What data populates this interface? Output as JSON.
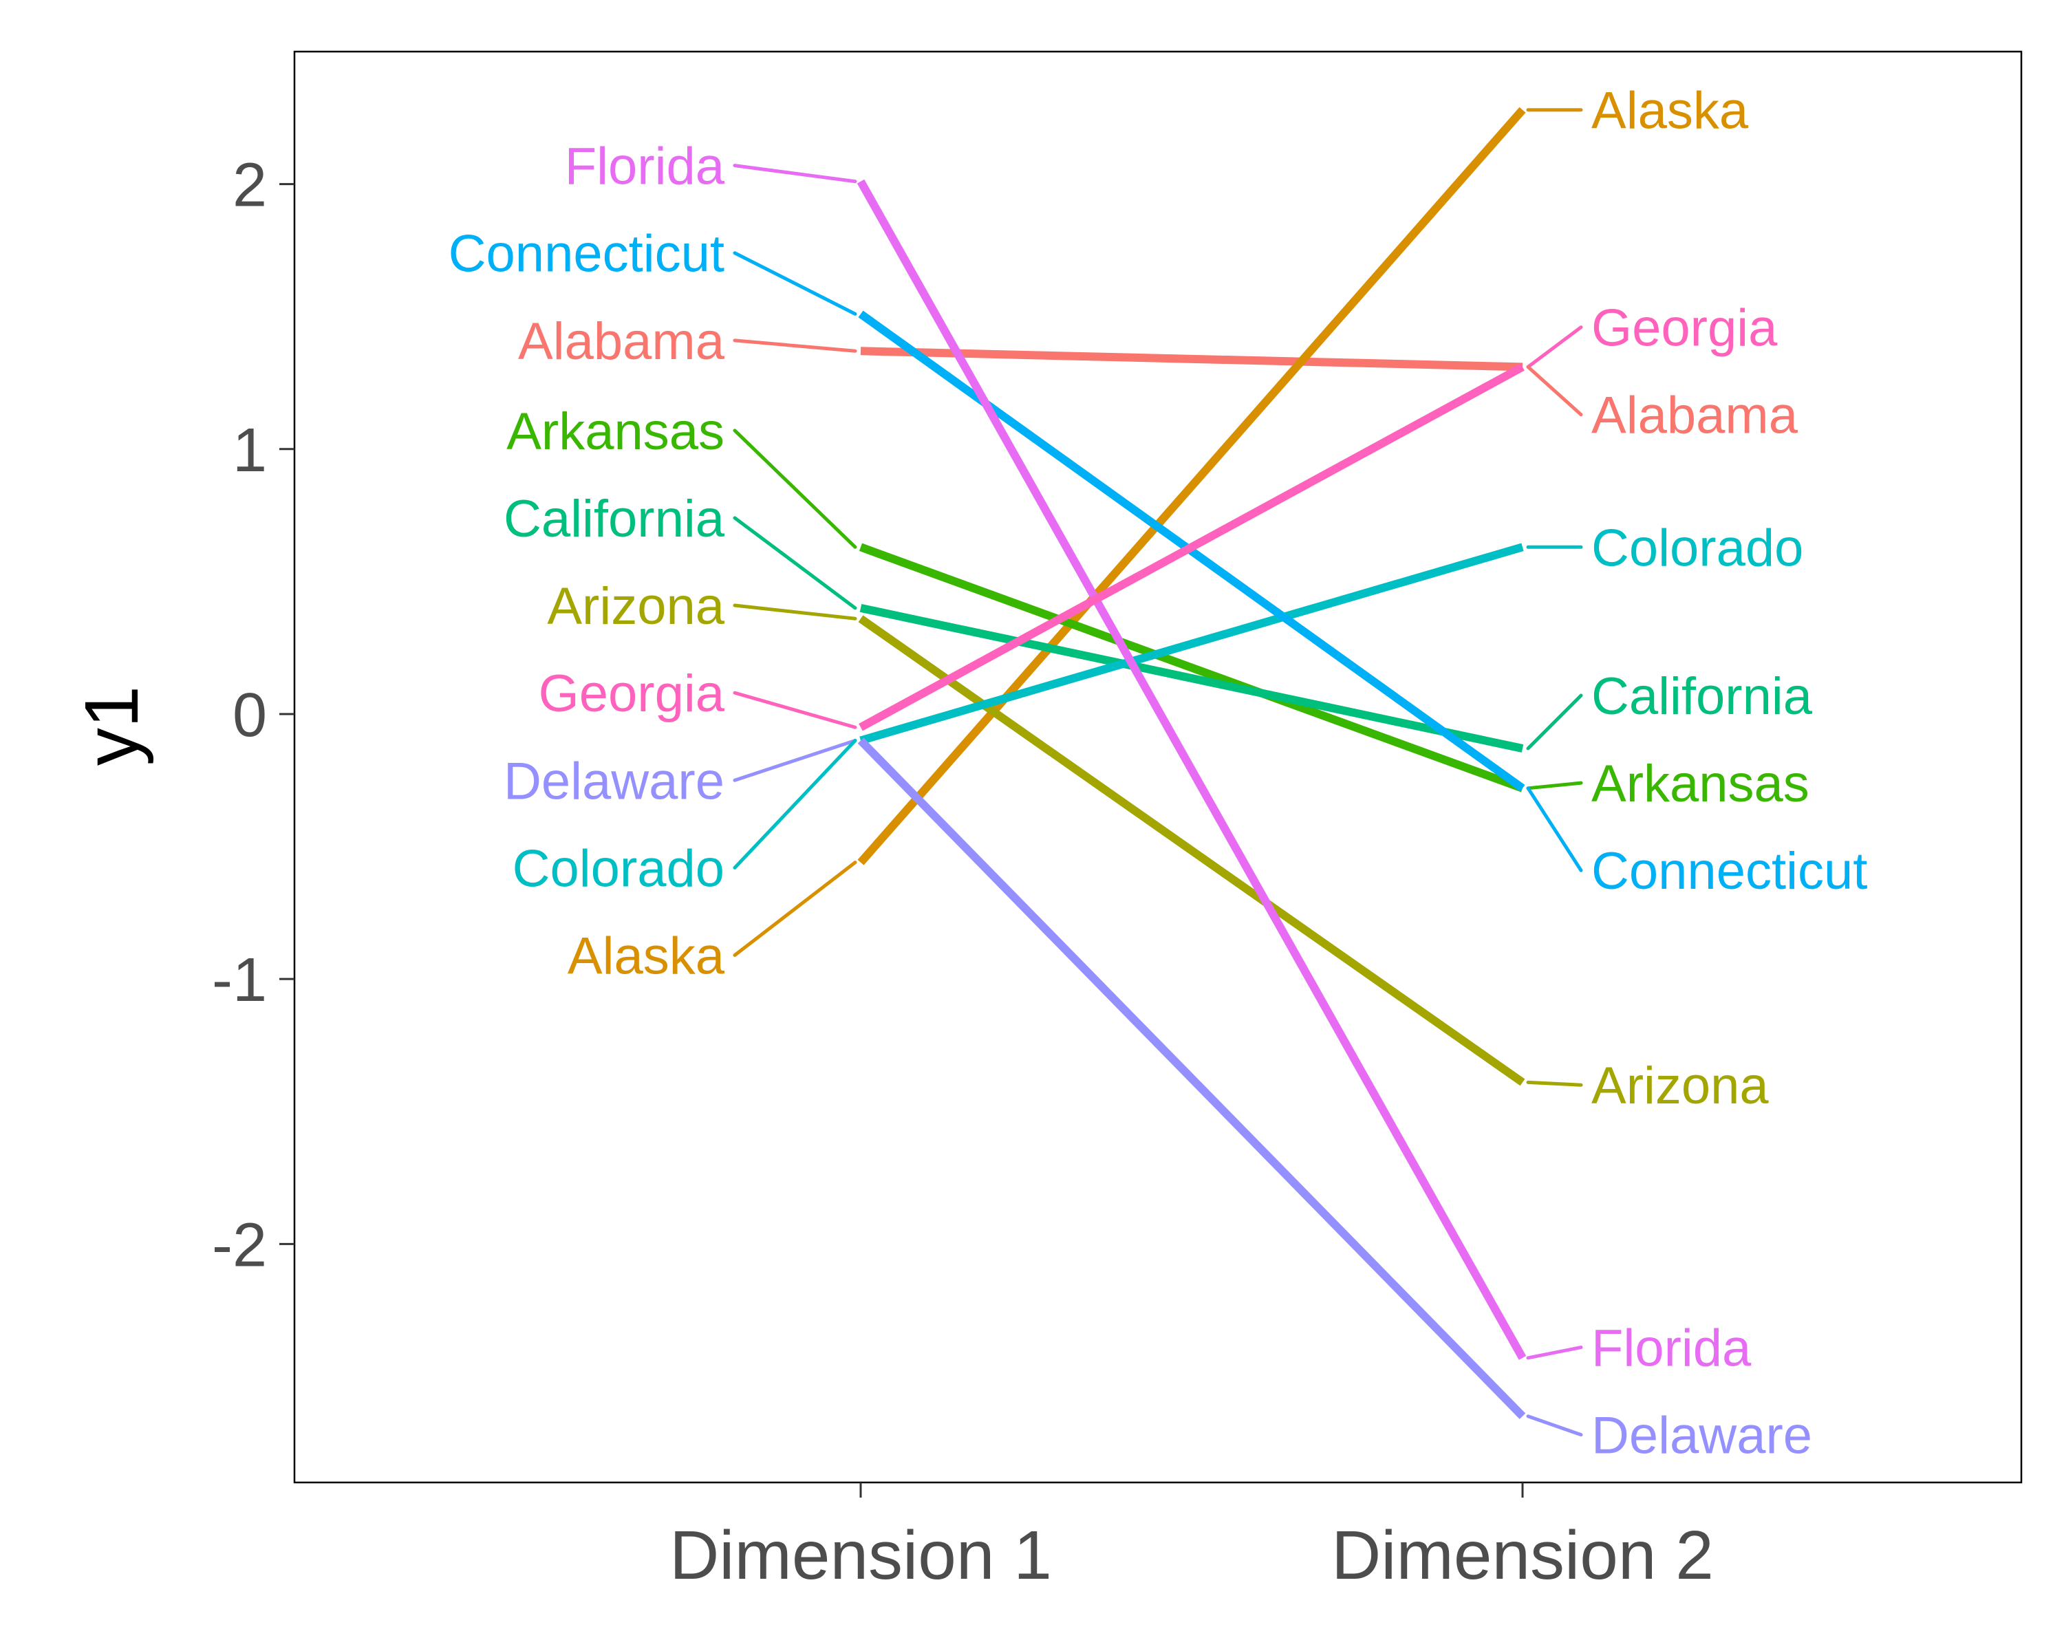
{
  "chart_data": {
    "type": "line",
    "title": "",
    "xlabel": "",
    "ylabel": "y1",
    "categories": [
      "Dimension 1",
      "Dimension 2"
    ],
    "ylim": [
      -2.9,
      2.5
    ],
    "yticks": [
      "2",
      "1",
      "0",
      "-1",
      "-2"
    ],
    "grid": false,
    "legend": "none",
    "series": [
      {
        "name": "Alabama",
        "color": "#F8766D",
        "values": [
          1.37,
          1.31
        ]
      },
      {
        "name": "Alaska",
        "color": "#D89000",
        "values": [
          -0.56,
          2.28
        ]
      },
      {
        "name": "Arizona",
        "color": "#A3A500",
        "values": [
          0.36,
          -1.39
        ]
      },
      {
        "name": "Arkansas",
        "color": "#39B600",
        "values": [
          0.63,
          -0.28
        ]
      },
      {
        "name": "California",
        "color": "#00BF7D",
        "values": [
          0.4,
          -0.13
        ]
      },
      {
        "name": "Colorado",
        "color": "#00BFC4",
        "values": [
          -0.1,
          0.63
        ]
      },
      {
        "name": "Connecticut",
        "color": "#00B0F6",
        "values": [
          1.51,
          -0.28
        ]
      },
      {
        "name": "Delaware",
        "color": "#9590FF",
        "values": [
          -0.1,
          -2.65
        ]
      },
      {
        "name": "Florida",
        "color": "#E76BF3",
        "values": [
          2.01,
          -2.43
        ]
      },
      {
        "name": "Georgia",
        "color": "#FF62BC",
        "values": [
          -0.05,
          1.31
        ]
      }
    ],
    "left_labels": [
      {
        "text": "Florida",
        "value": 2.07,
        "series": "Florida"
      },
      {
        "text": "Connecticut",
        "value": 1.74,
        "series": "Connecticut"
      },
      {
        "text": "Alabama",
        "value": 1.41,
        "series": "Alabama"
      },
      {
        "text": "Arkansas",
        "value": 1.07,
        "series": "Arkansas"
      },
      {
        "text": "California",
        "value": 0.74,
        "series": "California"
      },
      {
        "text": "Arizona",
        "value": 0.41,
        "series": "Arizona"
      },
      {
        "text": "Georgia",
        "value": 0.08,
        "series": "Georgia"
      },
      {
        "text": "Delaware",
        "value": -0.25,
        "series": "Delaware"
      },
      {
        "text": "Colorado",
        "value": -0.58,
        "series": "Colorado"
      },
      {
        "text": "Alaska",
        "value": -0.91,
        "series": "Alaska"
      }
    ],
    "right_labels": [
      {
        "text": "Alaska",
        "value": 2.28,
        "series": "Alaska"
      },
      {
        "text": "Georgia",
        "value": 1.46,
        "series": "Georgia"
      },
      {
        "text": "Alabama",
        "value": 1.13,
        "series": "Alabama"
      },
      {
        "text": "Colorado",
        "value": 0.63,
        "series": "Colorado"
      },
      {
        "text": "California",
        "value": 0.07,
        "series": "California"
      },
      {
        "text": "Arkansas",
        "value": -0.26,
        "series": "Arkansas"
      },
      {
        "text": "Connecticut",
        "value": -0.59,
        "series": "Connecticut"
      },
      {
        "text": "Arizona",
        "value": -1.4,
        "series": "Arizona"
      },
      {
        "text": "Florida",
        "value": -2.39,
        "series": "Florida"
      },
      {
        "text": "Delaware",
        "value": -2.72,
        "series": "Delaware"
      }
    ]
  }
}
